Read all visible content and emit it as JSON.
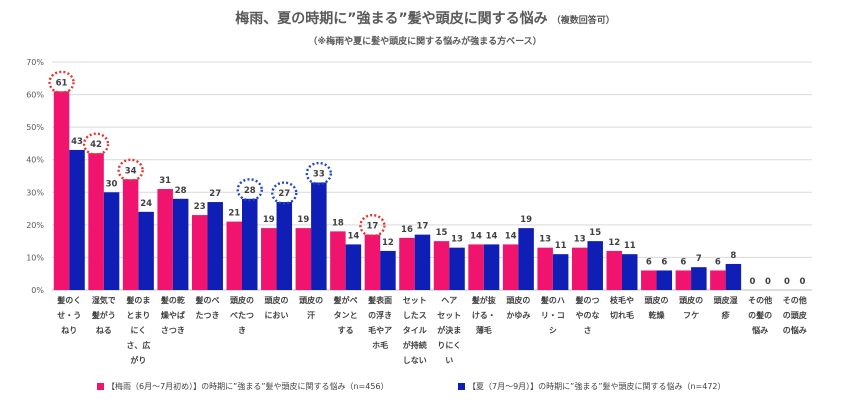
{
  "title": "梅雨、夏の時期に”強まる”髪や頭皮に関する悩み",
  "title_note": "（複数回答可）",
  "subtitle": "（※梅雨や夏に髪や頭皮に関する悩みが強まる方ベース）",
  "colors": {
    "rainy": "#F0146E",
    "summer": "#0F1EB4",
    "circle_red": "#E8322D",
    "circle_blue": "#1E46C8"
  },
  "chart_data": {
    "type": "bar",
    "ylim": [
      0,
      70
    ],
    "yticks": [
      "0%",
      "10%",
      "20%",
      "30%",
      "40%",
      "50%",
      "60%",
      "70%"
    ],
    "categories": [
      [
        "髪のく",
        "せ・う",
        "ねり"
      ],
      [
        "湿気で",
        "髪がう",
        "ねる"
      ],
      [
        "髪のま",
        "とまり",
        "にく",
        "さ、広",
        "がり"
      ],
      [
        "髪の乾",
        "燥やぱ",
        "さつき"
      ],
      [
        "髪のベ",
        "たつき"
      ],
      [
        "頭皮の",
        "べたつ",
        "き"
      ],
      [
        "頭皮の",
        "におい"
      ],
      [
        "頭皮の",
        "汗"
      ],
      [
        "髪がペ",
        "タンと",
        "する"
      ],
      [
        "髪表面",
        "の浮き",
        "毛やア",
        "ホ毛"
      ],
      [
        "セット",
        "したス",
        "タイル",
        "が持続",
        "しない"
      ],
      [
        "ヘア",
        "セット",
        "が決ま",
        "りにく",
        "い"
      ],
      [
        "髪が抜",
        "ける・",
        "薄毛"
      ],
      [
        "頭皮の",
        "かゆみ"
      ],
      [
        "髪のハ",
        "リ・コ",
        "シ"
      ],
      [
        "髪のつ",
        "やのな",
        "さ"
      ],
      [
        "枝毛や",
        "切れ毛"
      ],
      [
        "頭皮の",
        "乾燥"
      ],
      [
        "頭皮の",
        "フケ"
      ],
      [
        "頭皮湿",
        "疹"
      ],
      [
        "その他",
        "の髪の",
        "悩み"
      ],
      [
        "その他",
        "の頭皮",
        "の悩み"
      ]
    ],
    "series": [
      {
        "name": "【梅雨（6月〜7月初め）】の時期に”強まる”髪や頭皮に関する悩み（n=456）",
        "values": [
          61,
          42,
          34,
          31,
          23,
          21,
          19,
          19,
          18,
          17,
          16,
          15,
          14,
          14,
          13,
          13,
          12,
          6,
          6,
          6,
          0,
          0
        ]
      },
      {
        "name": "【夏（7月〜9月）】の時期に”強まる”髪や頭皮に関する悩み（n=472）",
        "values": [
          43,
          30,
          24,
          28,
          27,
          28,
          27,
          33,
          14,
          12,
          17,
          13,
          14,
          19,
          11,
          15,
          11,
          6,
          7,
          8,
          0,
          0
        ]
      }
    ],
    "highlights_red": [
      0,
      1,
      2,
      9
    ],
    "highlights_blue": [
      5,
      6,
      7
    ],
    "grid": true,
    "legend": "bottom"
  }
}
